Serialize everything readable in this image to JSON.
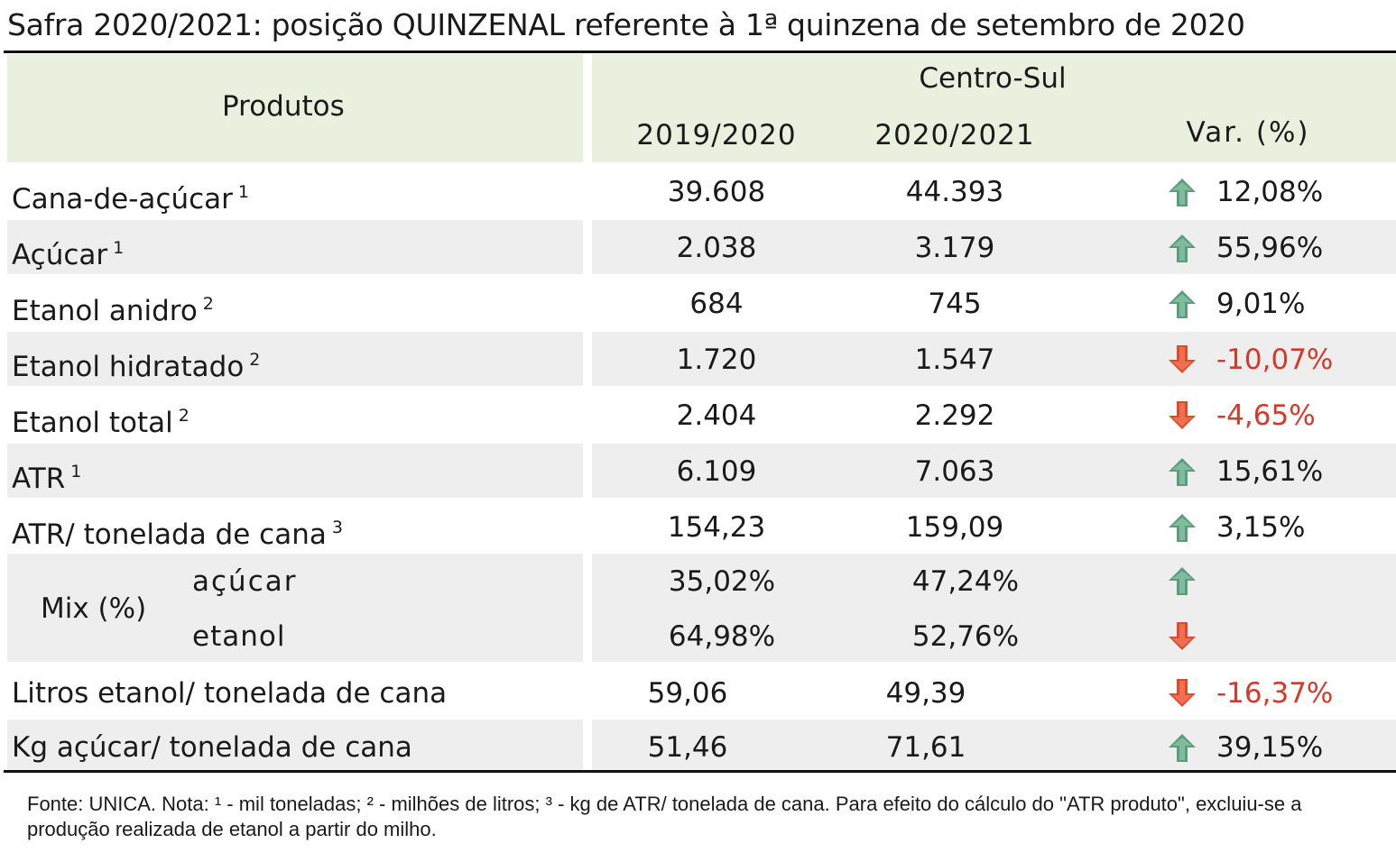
{
  "title": "Safra 2020/2021: posição QUINZENAL referente à 1ª quinzena de setembro de 2020",
  "header": {
    "products": "Produtos",
    "region": "Centro-Sul",
    "col1": "2019/2020",
    "col2": "2020/2021",
    "var": "Var. (%)"
  },
  "rows": [
    {
      "label": "Cana-de-açúcar",
      "note": "1",
      "v1": "39.608",
      "v2": "44.393",
      "trend": "up",
      "var": "12,08%"
    },
    {
      "label": "Açúcar",
      "note": "1",
      "v1": "2.038",
      "v2": "3.179",
      "trend": "up",
      "var": "55,96%"
    },
    {
      "label": "Etanol anidro",
      "note": "2",
      "v1": "684",
      "v2": "745",
      "trend": "up",
      "var": "9,01%"
    },
    {
      "label": "Etanol hidratado",
      "note": "2",
      "v1": "1.720",
      "v2": "1.547",
      "trend": "down",
      "var": "-10,07%"
    },
    {
      "label": "Etanol total",
      "note": "2",
      "v1": "2.404",
      "v2": "2.292",
      "trend": "down",
      "var": "-4,65%"
    },
    {
      "label": "ATR",
      "note": "1",
      "v1": "6.109",
      "v2": "7.063",
      "trend": "up",
      "var": "15,61%"
    },
    {
      "label": "ATR/ tonelada de cana",
      "note": "3",
      "v1": "154,23",
      "v2": "159,09",
      "trend": "up",
      "var": "3,15%"
    }
  ],
  "mix": {
    "label": "Mix (%)",
    "sugar": {
      "label": "açúcar",
      "v1": "35,02%",
      "v2": "47,24%",
      "trend": "up"
    },
    "ethanol": {
      "label": "etanol",
      "v1": "64,98%",
      "v2": "52,76%",
      "trend": "down"
    }
  },
  "tail_rows": [
    {
      "label": "Litros etanol/ tonelada de cana",
      "v1": "59,06",
      "v2": "49,39",
      "trend": "down",
      "var": "-16,37%"
    },
    {
      "label": "Kg açúcar/ tonelada de cana",
      "v1": "51,46",
      "v2": "71,61",
      "trend": "up",
      "var": "39,15%"
    }
  ],
  "footnote": "Fonte: UNICA. Nota: ¹ - mil toneladas; ² - milhões de litros; ³ - kg de ATR/ tonelada de cana. Para efeito do cálculo do \"ATR produto\", excluiu-se a produção realizada de etanol a partir do milho.",
  "colors": {
    "header_bg": "#e9f1de",
    "shade_bg": "#eeeeee",
    "up_arrow": "#5a9c7c",
    "down_arrow": "#dd4b2c",
    "negative_text": "#d23a2a"
  },
  "icons": {
    "up": "arrow-up-icon",
    "down": "arrow-down-icon"
  }
}
